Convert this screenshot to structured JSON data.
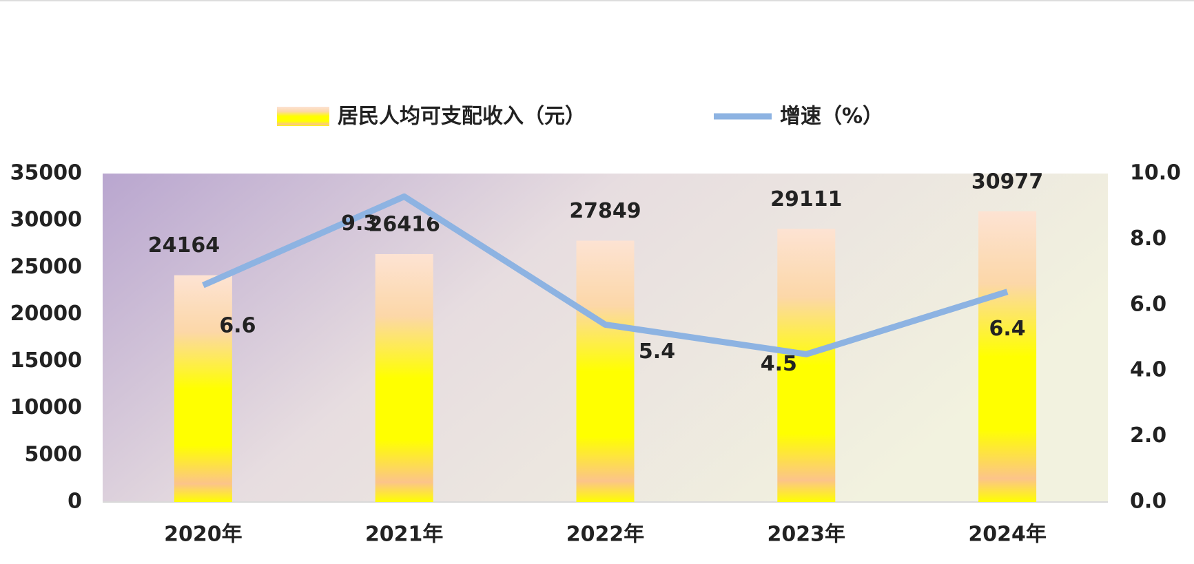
{
  "chart_data": {
    "type": "bar-line",
    "categories": [
      "2020年",
      "2021年",
      "2022年",
      "2023年",
      "2024年"
    ],
    "series": [
      {
        "name": "居民人均可支配收入（元）",
        "type": "bar",
        "color": "#ffff00",
        "values": [
          24164,
          26416,
          27849,
          29111,
          30977
        ]
      },
      {
        "name": "增速（%）",
        "type": "line",
        "axis": "y2",
        "color": "#8db3e2",
        "values": [
          6.6,
          9.3,
          5.4,
          4.5,
          6.4
        ]
      }
    ],
    "ylim": [
      0,
      35000
    ],
    "yticks": [
      0,
      5000,
      10000,
      15000,
      20000,
      25000,
      30000,
      35000
    ],
    "y2lim": [
      0,
      10
    ],
    "y2ticks": [
      {
        "value": 0,
        "label": "0.0"
      },
      {
        "value": 2,
        "label": "2.0"
      },
      {
        "value": 4,
        "label": "4.0"
      },
      {
        "value": 6,
        "label": "6.0"
      },
      {
        "value": 8,
        "label": "8.0"
      },
      {
        "value": 10,
        "label": "10.0"
      }
    ],
    "legend": "top"
  }
}
